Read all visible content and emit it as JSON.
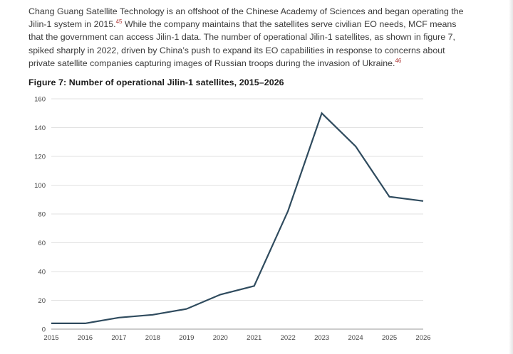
{
  "paragraph": {
    "line1": "Chang Guang Satellite Technology is an offshoot of the Chinese Academy of Sciences and began operating the",
    "line2a": "Jilin-1 system in 2015.",
    "fn1": "45",
    "line2b": " While the company maintains that the satellites serve civilian EO needs, MCF means",
    "line3": "that the government can access Jilin-1 data. The number of operational Jilin-1 satellites, as shown in figure 7,",
    "line4": "spiked sharply in 2022, driven by China’s push to expand its EO capabilities in response to concerns about",
    "line5": "private satellite companies capturing images of Russian troops during the invasion of Ukraine.",
    "fn2": "46"
  },
  "figure": {
    "title": "Figure 7: Number of operational Jilin-1 satellites, 2015–2026"
  },
  "colors": {
    "line": "#2f4b5e",
    "grid": "#d9d9d9",
    "axis": "#9a9a9a"
  },
  "chart_data": {
    "type": "line",
    "title": "Figure 7: Number of operational Jilin-1 satellites, 2015–2026",
    "xlabel": "",
    "ylabel": "",
    "x": [
      "2015",
      "2016",
      "2017",
      "2018",
      "2019",
      "2020",
      "2021",
      "2022",
      "2023",
      "2024",
      "2025",
      "2026"
    ],
    "series": [
      {
        "values": [
          4,
          4,
          8,
          10,
          14,
          24,
          30,
          82,
          150,
          127,
          92,
          89
        ]
      }
    ],
    "ylim": [
      0,
      160
    ],
    "yticks": [
      0,
      20,
      40,
      60,
      80,
      100,
      120,
      140,
      160
    ],
    "grid": true,
    "legend": "none"
  }
}
